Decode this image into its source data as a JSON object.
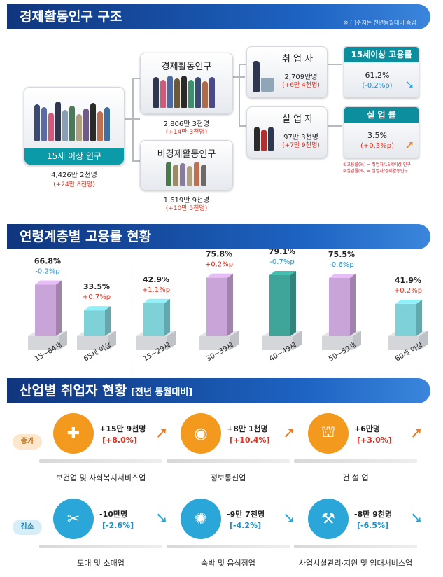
{
  "section1": {
    "title": "경제활동인구 구조",
    "note": "※ ( )수치는 전년동월대비 증감",
    "pop15": {
      "label": "15세 이상 인구",
      "value": "4,426만 2천명",
      "change": "(+24만 8천명)"
    },
    "econ_active": {
      "label": "경제활동인구",
      "value": "2,806만 3천명",
      "change": "(+14만 3천명)"
    },
    "non_active": {
      "label": "비경제활동인구",
      "value": "1,619만 9천명",
      "change": "(+10만 5천명)"
    },
    "employed": {
      "label": "취 업 자",
      "value": "2,709만명",
      "change": "(+6만 4천명)"
    },
    "unemployed": {
      "label": "실 업 자",
      "value": "97만 3천명",
      "change": "(+7만 9천명)"
    },
    "emp_rate": {
      "label": "15세이상 고용률",
      "value": "61.2%",
      "change": "(-0.2%p)"
    },
    "unemp_rate": {
      "label": "실 업 률",
      "value": "3.5%",
      "change": "(+0.3%p)"
    },
    "formula1": "①고용률(%) = 취업자/15세이상 인구",
    "formula2": "②실업률(%) = 실업자/경제활동인구"
  },
  "section2": {
    "title": "연령계층별 고용률 현황"
  },
  "chart_data": {
    "type": "bar",
    "categories": [
      "15~64세",
      "65세 이상",
      "15~29세",
      "30~39세",
      "40~49세",
      "50~59세",
      "60세 이상"
    ],
    "values": [
      66.8,
      33.5,
      42.9,
      75.8,
      79.1,
      75.5,
      41.9
    ],
    "value_labels": [
      "66.8%",
      "33.5%",
      "42.9%",
      "75.8%",
      "79.1%",
      "75.5%",
      "41.9%"
    ],
    "changes": [
      "-0.2%p",
      "+0.7%p",
      "+1.1%p",
      "+0.2%p",
      "-0.7%p",
      "-0.6%p",
      "+0.2%p"
    ],
    "change_colors": [
      "#1c8fc8",
      "#e8301e",
      "#e8301e",
      "#e8301e",
      "#1c8fc8",
      "#1c8fc8",
      "#e8301e"
    ],
    "bar_colors": [
      "#c9a4d8",
      "#7fd1d8",
      "#7fd1d8",
      "#c9a4d8",
      "#3fa59a",
      "#c9a4d8",
      "#7fd1d8"
    ],
    "title": "연령계층별 고용률 현황",
    "ylabel": "",
    "ylim": [
      0,
      100
    ]
  },
  "section3": {
    "title": "산업별 취업자 현황",
    "subtitle": "[전년 동월대비]",
    "increase_tag": "증가",
    "decrease_tag": "감소",
    "increase": [
      {
        "name": "보건업 및 사회복지서비스업",
        "value": "+15만 9천명",
        "pct": "[+8.0%]",
        "icon": "health-icon"
      },
      {
        "name": "정보통신업",
        "value": "+8만 1천명",
        "pct": "[+10.4%]",
        "icon": "mouse-icon"
      },
      {
        "name": "건 설 업",
        "value": "+6만명",
        "pct": "[+3.0%]",
        "icon": "crane-icon"
      }
    ],
    "decrease": [
      {
        "name": "도매 및 소매업",
        "value": "-10만명",
        "pct": "[-2.6%]",
        "icon": "sale-tag-icon"
      },
      {
        "name": "숙박 및 음식점업",
        "value": "-9만 7천명",
        "pct": "[-4.2%]",
        "icon": "service-icon"
      },
      {
        "name": "사업시설관리·지원 및 임대서비스업",
        "value": "-8만 9천명",
        "pct": "[-6.5%]",
        "icon": "tools-people-icon"
      }
    ],
    "colors": {
      "increase_icon": "#f39a1e",
      "decrease_icon": "#2aa7d8",
      "increase_text": "#e8301e",
      "decrease_text": "#1c8fc8"
    }
  }
}
